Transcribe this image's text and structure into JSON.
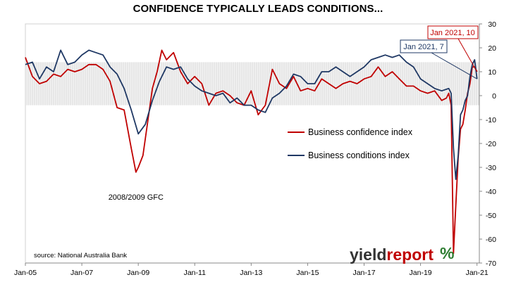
{
  "chart_data": {
    "type": "line",
    "title": "CONFIDENCE TYPICALLY LEADS CONDITIONS...",
    "ylim": [
      -70,
      30
    ],
    "y_ticks": [
      30,
      20,
      10,
      0,
      -10,
      -20,
      -30,
      -40,
      -50,
      -60,
      -70
    ],
    "x_tick_labels": [
      "Jan-05",
      "Jan-07",
      "Jan-09",
      "Jan-11",
      "Jan-13",
      "Jan-15",
      "Jan-17",
      "Jan-19",
      "Jan-21"
    ],
    "shaded_band": [
      -4,
      14
    ],
    "series": [
      {
        "name": "Business confidence index",
        "color": "#c00000",
        "points": [
          [
            "2005-01",
            16
          ],
          [
            "2005-04",
            8
          ],
          [
            "2005-07",
            5
          ],
          [
            "2005-10",
            6
          ],
          [
            "2006-01",
            9
          ],
          [
            "2006-04",
            8
          ],
          [
            "2006-07",
            11
          ],
          [
            "2006-10",
            10
          ],
          [
            "2007-01",
            11
          ],
          [
            "2007-04",
            13
          ],
          [
            "2007-07",
            13
          ],
          [
            "2007-10",
            11
          ],
          [
            "2008-01",
            6
          ],
          [
            "2008-04",
            -5
          ],
          [
            "2008-07",
            -6
          ],
          [
            "2008-10",
            -22
          ],
          [
            "2008-12",
            -32
          ],
          [
            "2009-01",
            -30
          ],
          [
            "2009-03",
            -25
          ],
          [
            "2009-05",
            -11
          ],
          [
            "2009-07",
            3
          ],
          [
            "2009-09",
            10
          ],
          [
            "2009-11",
            19
          ],
          [
            "2010-01",
            15
          ],
          [
            "2010-04",
            18
          ],
          [
            "2010-07",
            10
          ],
          [
            "2010-10",
            5
          ],
          [
            "2011-01",
            8
          ],
          [
            "2011-04",
            5
          ],
          [
            "2011-07",
            -4
          ],
          [
            "2011-10",
            1
          ],
          [
            "2012-01",
            2
          ],
          [
            "2012-04",
            0
          ],
          [
            "2012-07",
            -3
          ],
          [
            "2012-10",
            -4
          ],
          [
            "2013-01",
            2
          ],
          [
            "2013-04",
            -8
          ],
          [
            "2013-07",
            -4
          ],
          [
            "2013-10",
            11
          ],
          [
            "2014-01",
            5
          ],
          [
            "2014-04",
            3
          ],
          [
            "2014-07",
            8
          ],
          [
            "2014-10",
            2
          ],
          [
            "2015-01",
            3
          ],
          [
            "2015-04",
            2
          ],
          [
            "2015-07",
            7
          ],
          [
            "2015-10",
            5
          ],
          [
            "2016-01",
            3
          ],
          [
            "2016-04",
            5
          ],
          [
            "2016-07",
            6
          ],
          [
            "2016-10",
            5
          ],
          [
            "2017-01",
            7
          ],
          [
            "2017-04",
            8
          ],
          [
            "2017-07",
            12
          ],
          [
            "2017-10",
            8
          ],
          [
            "2018-01",
            10
          ],
          [
            "2018-04",
            7
          ],
          [
            "2018-07",
            4
          ],
          [
            "2018-10",
            4
          ],
          [
            "2019-01",
            2
          ],
          [
            "2019-04",
            1
          ],
          [
            "2019-07",
            2
          ],
          [
            "2019-10",
            -2
          ],
          [
            "2019-12",
            -1
          ],
          [
            "2020-01",
            1
          ],
          [
            "2020-02",
            -4
          ],
          [
            "2020-03",
            -66
          ],
          [
            "2020-04",
            -46
          ],
          [
            "2020-05",
            -26
          ],
          [
            "2020-06",
            -14
          ],
          [
            "2020-07",
            -12
          ],
          [
            "2020-08",
            -6
          ],
          [
            "2020-09",
            1
          ],
          [
            "2020-10",
            5
          ],
          [
            "2020-11",
            12
          ],
          [
            "2020-12",
            12
          ],
          [
            "2021-01",
            10
          ]
        ]
      },
      {
        "name": "Business conditions index",
        "color": "#1f3864",
        "points": [
          [
            "2005-01",
            13
          ],
          [
            "2005-04",
            14
          ],
          [
            "2005-07",
            7
          ],
          [
            "2005-10",
            12
          ],
          [
            "2006-01",
            10
          ],
          [
            "2006-04",
            19
          ],
          [
            "2006-07",
            13
          ],
          [
            "2006-10",
            14
          ],
          [
            "2007-01",
            17
          ],
          [
            "2007-04",
            19
          ],
          [
            "2007-07",
            18
          ],
          [
            "2007-10",
            17
          ],
          [
            "2008-01",
            12
          ],
          [
            "2008-04",
            9
          ],
          [
            "2008-07",
            3
          ],
          [
            "2008-10",
            -6
          ],
          [
            "2009-01",
            -16
          ],
          [
            "2009-04",
            -12
          ],
          [
            "2009-07",
            -2
          ],
          [
            "2009-10",
            6
          ],
          [
            "2010-01",
            12
          ],
          [
            "2010-04",
            11
          ],
          [
            "2010-07",
            12
          ],
          [
            "2010-10",
            7
          ],
          [
            "2011-01",
            4
          ],
          [
            "2011-04",
            2
          ],
          [
            "2011-07",
            1
          ],
          [
            "2011-10",
            0
          ],
          [
            "2012-01",
            1
          ],
          [
            "2012-04",
            -3
          ],
          [
            "2012-07",
            -1
          ],
          [
            "2012-10",
            -4
          ],
          [
            "2013-01",
            -4
          ],
          [
            "2013-04",
            -6
          ],
          [
            "2013-07",
            -7
          ],
          [
            "2013-10",
            -1
          ],
          [
            "2014-01",
            1
          ],
          [
            "2014-04",
            4
          ],
          [
            "2014-07",
            9
          ],
          [
            "2014-10",
            8
          ],
          [
            "2015-01",
            5
          ],
          [
            "2015-04",
            5
          ],
          [
            "2015-07",
            10
          ],
          [
            "2015-10",
            10
          ],
          [
            "2016-01",
            12
          ],
          [
            "2016-04",
            10
          ],
          [
            "2016-07",
            8
          ],
          [
            "2016-10",
            10
          ],
          [
            "2017-01",
            12
          ],
          [
            "2017-04",
            15
          ],
          [
            "2017-07",
            16
          ],
          [
            "2017-10",
            17
          ],
          [
            "2018-01",
            16
          ],
          [
            "2018-04",
            17
          ],
          [
            "2018-07",
            14
          ],
          [
            "2018-10",
            12
          ],
          [
            "2019-01",
            7
          ],
          [
            "2019-04",
            5
          ],
          [
            "2019-07",
            3
          ],
          [
            "2019-10",
            2
          ],
          [
            "2020-01",
            3
          ],
          [
            "2020-02",
            1
          ],
          [
            "2020-03",
            -22
          ],
          [
            "2020-04",
            -35
          ],
          [
            "2020-05",
            -25
          ],
          [
            "2020-06",
            -8
          ],
          [
            "2020-07",
            -6
          ],
          [
            "2020-08",
            -2
          ],
          [
            "2020-09",
            0
          ],
          [
            "2020-10",
            8
          ],
          [
            "2020-11",
            13
          ],
          [
            "2020-12",
            15
          ],
          [
            "2021-01",
            7
          ]
        ]
      }
    ],
    "legend": [
      "Business confidence index",
      "Business conditions index"
    ],
    "annotations": [
      {
        "text": "2008/2009 GFC",
        "x": "2008-12",
        "y": -37
      },
      {
        "text": "Jan 2021, 10",
        "x": "2021-01",
        "y": 10,
        "series": 0
      },
      {
        "text": "Jan 2021, 7",
        "x": "2021-01",
        "y": 7,
        "series": 1
      }
    ],
    "source": "source: National Australia Bank"
  },
  "logo": {
    "word1": "yield",
    "word2": "report",
    "mark": "%"
  }
}
